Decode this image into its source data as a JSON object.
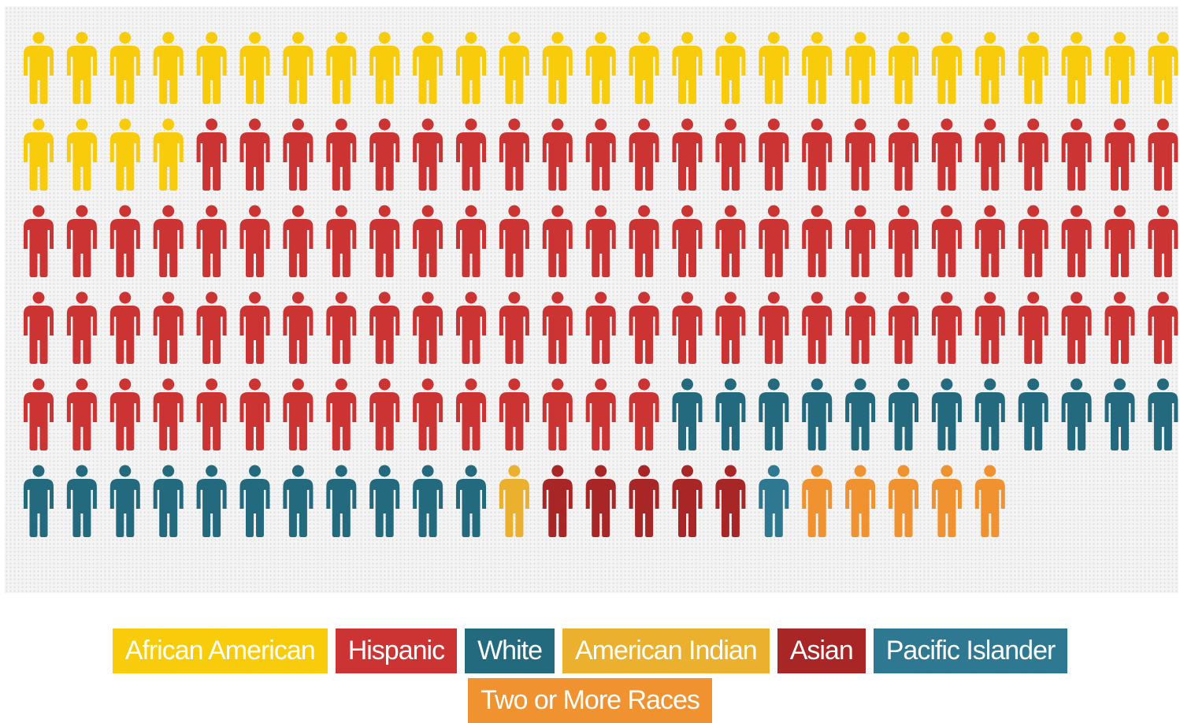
{
  "title": "",
  "chart_data": {
    "type": "pictogram",
    "unit": "1 figure",
    "icons_per_row": 27,
    "rows": 6,
    "total_icons": 162,
    "categories": [
      {
        "name": "African American",
        "count": 31,
        "color": "#F9CC0B"
      },
      {
        "name": "Hispanic",
        "count": 92,
        "color": "#CC3333"
      },
      {
        "name": "White",
        "count": 23,
        "color": "#246A7E"
      },
      {
        "name": "American Indian",
        "count": 1,
        "color": "#EBB02E"
      },
      {
        "name": "Asian",
        "count": 5,
        "color": "#A82626"
      },
      {
        "name": "Pacific Islander",
        "count": 1,
        "color": "#2E7892"
      },
      {
        "name": "Two or More Races",
        "count": 5,
        "color": "#F0922F"
      }
    ]
  },
  "legend": [
    {
      "label": "African American",
      "color": "#F9CC0B"
    },
    {
      "label": "Hispanic",
      "color": "#CC3333"
    },
    {
      "label": "White",
      "color": "#246A7E"
    },
    {
      "label": "American Indian",
      "color": "#EBB02E"
    },
    {
      "label": "Asian",
      "color": "#A82626"
    },
    {
      "label": "Pacific Islander",
      "color": "#2E7892"
    },
    {
      "label": "Two or More Races",
      "color": "#F0922F"
    }
  ]
}
